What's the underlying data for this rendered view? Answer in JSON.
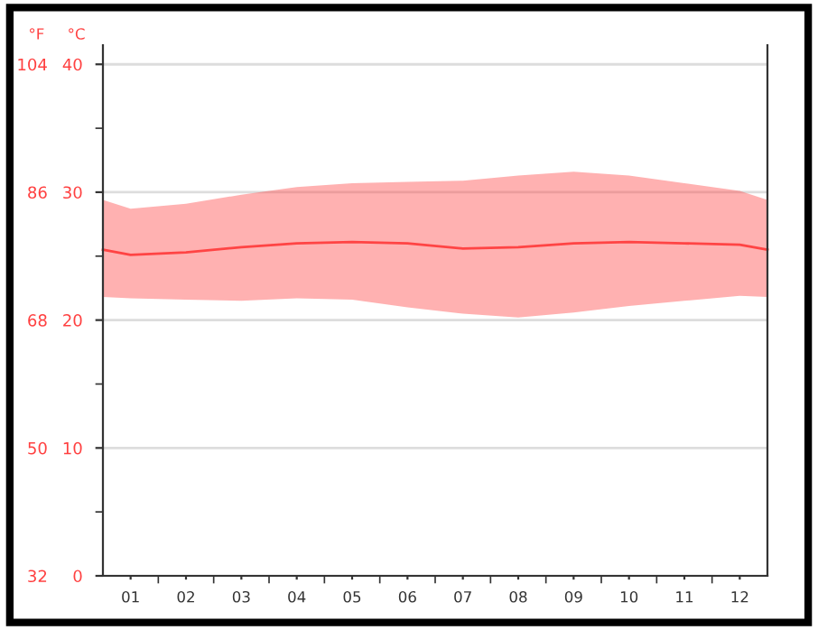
{
  "chart_data": {
    "type": "line",
    "ylabel": "°C",
    "y2label": "°F",
    "x": [
      0.5,
      1,
      2,
      3,
      4,
      5,
      6,
      7,
      8,
      9,
      10,
      11,
      12,
      12.5
    ],
    "series": [
      {
        "color": "#ff4444",
        "values": [
          25.5,
          25.1,
          25.3,
          25.7,
          26.0,
          26.1,
          26.0,
          25.6,
          25.7,
          26.0,
          26.1,
          26.0,
          25.9,
          25.5
        ],
        "upper": [
          29.4,
          28.7,
          29.1,
          29.8,
          30.4,
          30.7,
          30.8,
          30.9,
          31.3,
          31.6,
          31.3,
          30.7,
          30.1,
          29.4
        ],
        "lower": [
          21.8,
          21.7,
          21.6,
          21.5,
          21.7,
          21.6,
          21.0,
          20.5,
          20.2,
          20.6,
          21.1,
          21.5,
          21.9,
          21.8
        ]
      }
    ],
    "xlim": [
      0.5,
      12.5
    ],
    "xticks": [
      {
        "value": 1,
        "label": "01"
      },
      {
        "value": 1.5,
        "label": null
      },
      {
        "value": 2,
        "label": "02"
      },
      {
        "value": 2.5,
        "label": null
      },
      {
        "value": 3,
        "label": "03"
      },
      {
        "value": 3.5,
        "label": null
      },
      {
        "value": 4,
        "label": "04"
      },
      {
        "value": 4.5,
        "label": null
      },
      {
        "value": 5,
        "label": "05"
      },
      {
        "value": 5.5,
        "label": null
      },
      {
        "value": 6,
        "label": "06"
      },
      {
        "value": 6.5,
        "label": null
      },
      {
        "value": 7,
        "label": "07"
      },
      {
        "value": 7.5,
        "label": null
      },
      {
        "value": 8,
        "label": "08"
      },
      {
        "value": 8.5,
        "label": null
      },
      {
        "value": 9,
        "label": "09"
      },
      {
        "value": 9.5,
        "label": null
      },
      {
        "value": 10,
        "label": "10"
      },
      {
        "value": 10.5,
        "label": null
      },
      {
        "value": 11,
        "label": "11"
      },
      {
        "value": 11.5,
        "label": null
      },
      {
        "value": 12,
        "label": "12"
      }
    ],
    "ylim": [
      0,
      41.5
    ],
    "yticks": [
      0,
      10,
      20,
      30,
      40,
      {
        "value": 5,
        "label": null
      },
      {
        "value": 15,
        "label": null
      },
      {
        "value": 25,
        "label": null
      },
      {
        "value": 35,
        "label": null
      }
    ],
    "y2lim": [
      32,
      106.7
    ],
    "y2ticks": [
      32,
      50,
      68,
      86,
      104
    ],
    "grid": "y",
    "legend": false,
    "marker": "none",
    "line_style": "solid"
  }
}
